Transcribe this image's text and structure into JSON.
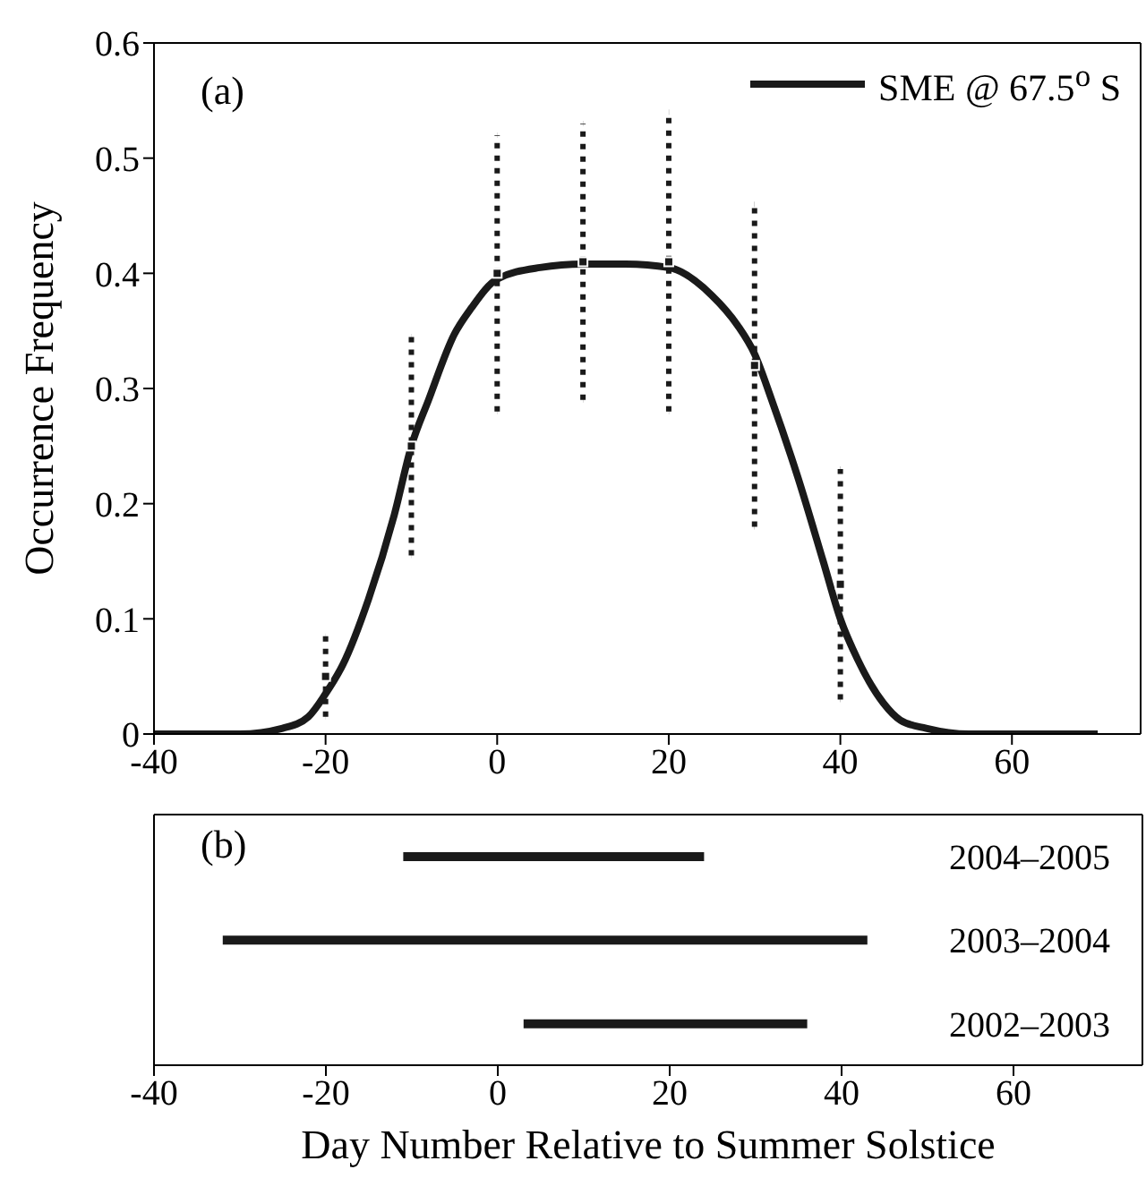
{
  "chart_data": [
    {
      "type": "line",
      "ylabel": "Occurrence Frequency",
      "annotations": [
        "(a)"
      ],
      "xlim": [
        -40,
        75
      ],
      "xticks": [
        -40,
        -20,
        0,
        20,
        40,
        60
      ],
      "ylim": [
        0,
        0.6
      ],
      "yticks": [
        0,
        0.1,
        0.2,
        0.3,
        0.4,
        0.5,
        0.6
      ],
      "legend": "top right",
      "grid": false,
      "marker": "none",
      "line_style": "solid",
      "series": [
        {
          "name": "SME @ 67.5$^{o}$ S",
          "color": "#1a1a1a",
          "type": "line",
          "x": [
            -40,
            -35,
            -30,
            -25,
            -22,
            -20,
            -18,
            -15,
            -12,
            -10,
            -8,
            -5,
            -3,
            0,
            5,
            10,
            15,
            20,
            25,
            28,
            30,
            32,
            35,
            38,
            40,
            42,
            45,
            47,
            50,
            55,
            60,
            65,
            70
          ],
          "values": [
            0,
            0,
            0,
            0.005,
            0.015,
            0.035,
            0.06,
            0.117,
            0.19,
            0.25,
            0.29,
            0.347,
            0.37,
            0.395,
            0.405,
            0.408,
            0.408,
            0.405,
            0.381,
            0.355,
            0.33,
            0.29,
            0.224,
            0.15,
            0.1,
            0.065,
            0.027,
            0.012,
            0.005,
            0,
            0,
            0,
            0
          ]
        },
        {
          "color": "#1a1a1a",
          "type": "scatter",
          "line_style": "dotted",
          "marker": "square",
          "x": [
            -20,
            -10,
            0,
            10,
            20,
            30,
            40
          ],
          "values": [
            0.05,
            0.25,
            0.4,
            0.41,
            0.41,
            0.32,
            0.13
          ],
          "errors": [
            0.035,
            0.095,
            0.12,
            0.12,
            0.13,
            0.14,
            0.1
          ]
        }
      ]
    },
    {
      "type": "bar",
      "orientation": "horizontal",
      "xlabel": "Day Number Relative to Summer Solstice",
      "annotations": [
        "(b)"
      ],
      "categories": [
        "2004–2005",
        "2003–2004",
        "2002–2003"
      ],
      "values": [
        35,
        75,
        33
      ],
      "base": [
        -11,
        -32,
        3
      ],
      "color": "#1a1a1a",
      "xlim": [
        -40,
        75
      ],
      "xticks": [
        -40,
        -20,
        0,
        20,
        40,
        60
      ],
      "tick_labels": "x"
    }
  ]
}
